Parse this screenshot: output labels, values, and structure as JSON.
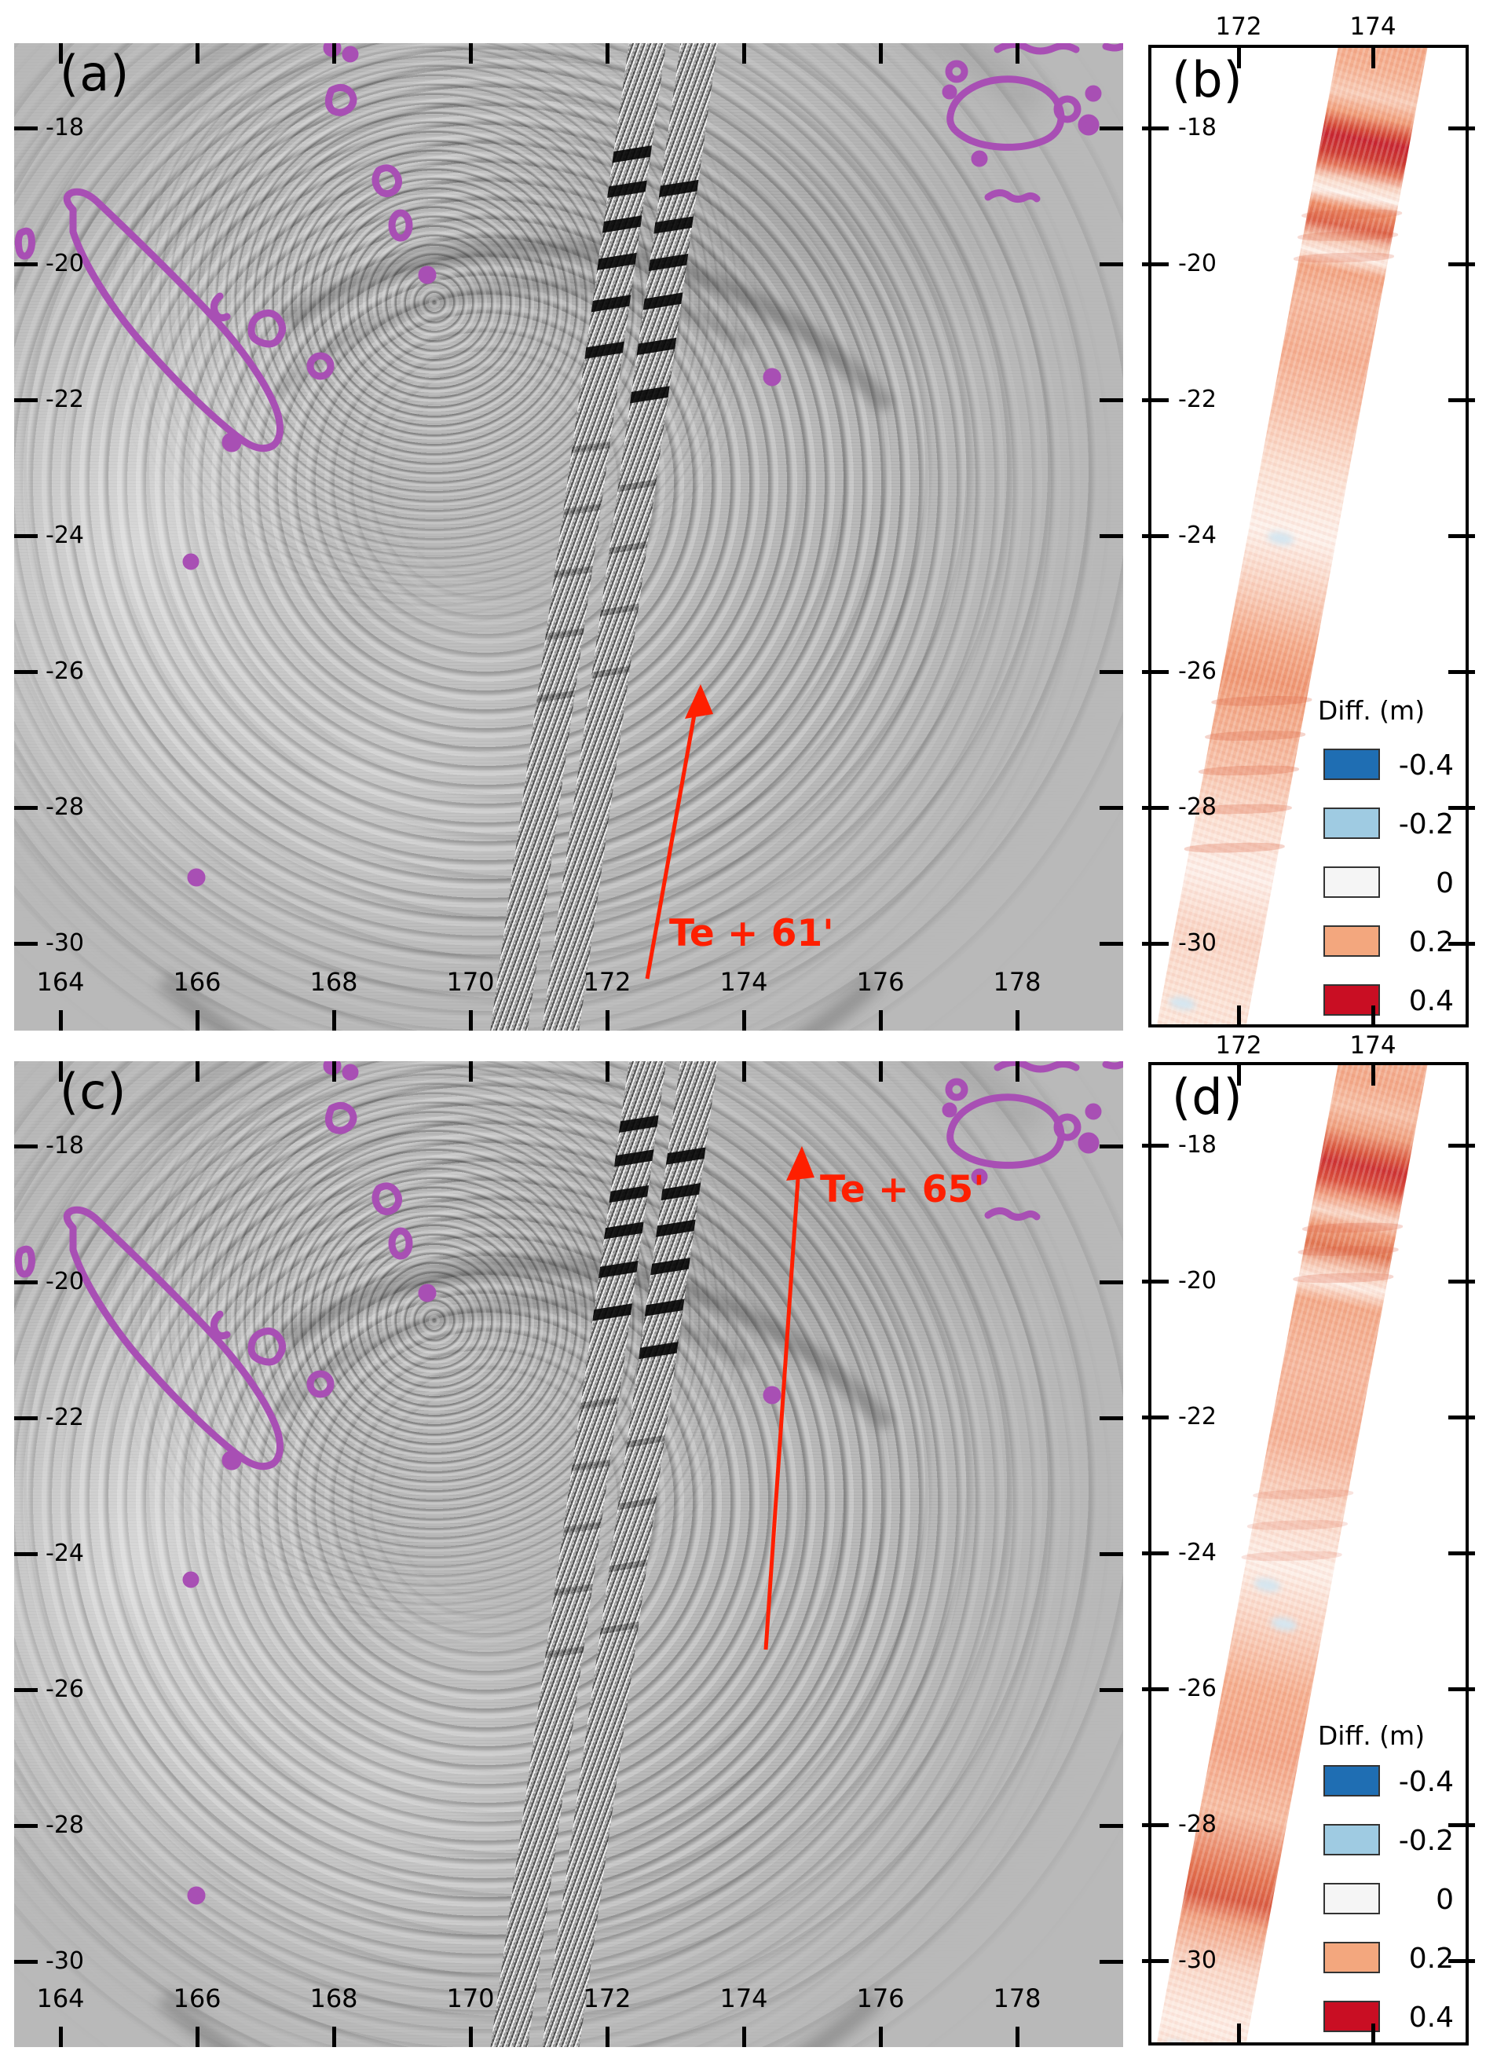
{
  "figure": {
    "panels": {
      "a": {
        "label": "(a)",
        "annotation": "Te + 61'",
        "lon_ticks": [
          "164",
          "166",
          "168",
          "170",
          "172",
          "174",
          "176",
          "178"
        ],
        "lat_ticks": [
          "-18",
          "-20",
          "-22",
          "-24",
          "-26",
          "-28",
          "-30"
        ]
      },
      "b": {
        "label": "(b)",
        "lon_ticks_top": [
          "172",
          "174"
        ],
        "lon_ticks_bottom": [
          "172",
          "174"
        ],
        "lat_ticks": [
          "-18",
          "-20",
          "-22",
          "-24",
          "-26",
          "-28",
          "-30"
        ],
        "legend": {
          "title": "Diff. (m)",
          "entries": [
            {
              "label": "-0.4",
              "color": "#1f6eb3"
            },
            {
              "label": "-0.2",
              "color": "#9fcbe2"
            },
            {
              "label": "0",
              "color": "#f5f5f5"
            },
            {
              "label": "0.2",
              "color": "#f3a77e"
            },
            {
              "label": "0.4",
              "color": "#c90e23"
            }
          ]
        }
      },
      "c": {
        "label": "(c)",
        "annotation": "Te + 65'",
        "lon_ticks": [
          "164",
          "166",
          "168",
          "170",
          "172",
          "174",
          "176",
          "178"
        ],
        "lat_ticks": [
          "-18",
          "-20",
          "-22",
          "-24",
          "-26",
          "-28",
          "-30"
        ]
      },
      "d": {
        "label": "(d)",
        "lat_ticks": [
          "-18",
          "-20",
          "-22",
          "-24",
          "-26",
          "-28",
          "-30"
        ],
        "legend": {
          "title": "Diff. (m)",
          "entries": [
            {
              "label": "-0.4",
              "color": "#1f6eb3"
            },
            {
              "label": "-0.2",
              "color": "#9fcbe2"
            },
            {
              "label": "0",
              "color": "#f5f5f5"
            },
            {
              "label": "0.2",
              "color": "#f3a77e"
            },
            {
              "label": "0.4",
              "color": "#c90e23"
            }
          ]
        }
      }
    },
    "colors": {
      "map_background": "#b9b9b9",
      "coastline_purple": "#a84fb4",
      "annotation_red": "#fe1f00",
      "swath_peak_red": "#c62330",
      "swath_salmon": "#f4a582"
    }
  }
}
